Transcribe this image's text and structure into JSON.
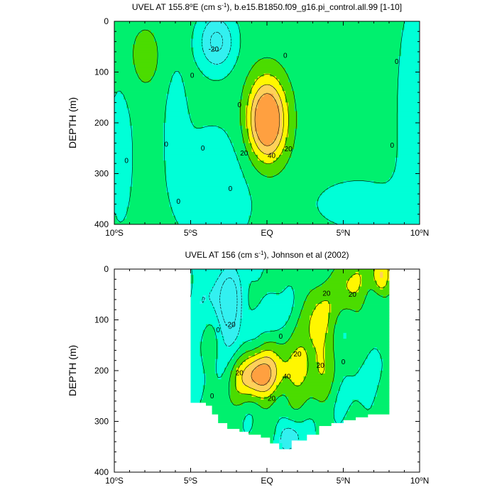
{
  "colors": {
    "band_neg30_neg10": "#33f0f0",
    "band_neg10_0": "#00ffd7",
    "band_0_10": "#00f06e",
    "band_10_20": "#4bdc00",
    "band_20_30": "#fff700",
    "band_30_40": "#ffd05a",
    "band_40_50": "#ffa040",
    "missing": "#ffffff",
    "axis": "#000000"
  },
  "chart_data": [
    {
      "type": "contour",
      "title_prefix": "UVEL AT 155.8",
      "title_deg": "o",
      "title_mid": "E (cm s",
      "title_exp": "-1",
      "title_suffix": "), b.e15.B1850.f09_g16.pi_control.all.99 [1-10]",
      "ylabel": "DEPTH (m)",
      "xlabel": "",
      "x_range": [
        -10,
        10
      ],
      "y_range": [
        0,
        400
      ],
      "y_reversed": true,
      "x_ticks": [
        {
          "value": -10,
          "num": "10",
          "deg": "o",
          "hemi": "S"
        },
        {
          "value": -5,
          "num": "5",
          "deg": "o",
          "hemi": "S"
        },
        {
          "value": 0,
          "num": "EQ",
          "deg": "",
          "hemi": ""
        },
        {
          "value": 5,
          "num": "5",
          "deg": "o",
          "hemi": "N"
        },
        {
          "value": 10,
          "num": "10",
          "deg": "o",
          "hemi": "N"
        }
      ],
      "y_ticks": [
        {
          "value": 0,
          "label": "0"
        },
        {
          "value": 100,
          "label": "100"
        },
        {
          "value": 200,
          "label": "200"
        },
        {
          "value": 300,
          "label": "300"
        },
        {
          "value": 400,
          "label": "400"
        }
      ],
      "contour_levels": [
        -20,
        -10,
        0,
        10,
        20,
        30,
        40
      ],
      "contour_labels": [
        {
          "lat": -3.5,
          "depth": 55,
          "text": "-20"
        },
        {
          "lat": 1.2,
          "depth": 68,
          "text": "0"
        },
        {
          "lat": -4.9,
          "depth": 107,
          "text": "0"
        },
        {
          "lat": -9.2,
          "depth": 275,
          "text": "0"
        },
        {
          "lat": -6.6,
          "depth": 243,
          "text": "0"
        },
        {
          "lat": -4.2,
          "depth": 250,
          "text": "0"
        },
        {
          "lat": -5.8,
          "depth": 355,
          "text": "0"
        },
        {
          "lat": -2.4,
          "depth": 330,
          "text": "0"
        },
        {
          "lat": -1.8,
          "depth": 165,
          "text": "0"
        },
        {
          "lat": 8.5,
          "depth": 80,
          "text": "0"
        },
        {
          "lat": 8.2,
          "depth": 245,
          "text": "0"
        },
        {
          "lat": -1.5,
          "depth": 260,
          "text": "20"
        },
        {
          "lat": 0.3,
          "depth": 265,
          "text": "40"
        },
        {
          "lat": 1.4,
          "depth": 252,
          "text": "20"
        }
      ]
    },
    {
      "type": "contour",
      "title_prefix": "UVEL AT 156 (cm s",
      "title_exp": "-1",
      "title_suffix": "), Johnson et al (2002)",
      "ylabel": "DEPTH (m)",
      "xlabel": "",
      "x_range": [
        -10,
        10
      ],
      "y_range": [
        0,
        400
      ],
      "y_reversed": true,
      "data_lat_range": [
        -5,
        8
      ],
      "x_ticks": [
        {
          "value": -10,
          "num": "10",
          "deg": "o",
          "hemi": "S"
        },
        {
          "value": -5,
          "num": "5",
          "deg": "o",
          "hemi": "S"
        },
        {
          "value": 0,
          "num": "EQ",
          "deg": "",
          "hemi": ""
        },
        {
          "value": 5,
          "num": "5",
          "deg": "o",
          "hemi": "N"
        },
        {
          "value": 10,
          "num": "10",
          "deg": "o",
          "hemi": "N"
        }
      ],
      "y_ticks": [
        {
          "value": 0,
          "label": "0"
        },
        {
          "value": 100,
          "label": "100"
        },
        {
          "value": 200,
          "label": "200"
        },
        {
          "value": 300,
          "label": "300"
        },
        {
          "value": 400,
          "label": "400"
        }
      ],
      "contour_levels": [
        -20,
        -10,
        0,
        10,
        20,
        30,
        40
      ],
      "contour_labels": [
        {
          "lat": -2.4,
          "depth": 110,
          "text": "-20"
        },
        {
          "lat": -3.2,
          "depth": 120,
          "text": "0"
        },
        {
          "lat": 0.9,
          "depth": 133,
          "text": "0"
        },
        {
          "lat": -3.6,
          "depth": 250,
          "text": "0"
        },
        {
          "lat": 3.9,
          "depth": 48,
          "text": "20"
        },
        {
          "lat": 5.6,
          "depth": 50,
          "text": "20"
        },
        {
          "lat": 2.0,
          "depth": 168,
          "text": "20"
        },
        {
          "lat": 3.5,
          "depth": 190,
          "text": "20"
        },
        {
          "lat": 5.0,
          "depth": 183,
          "text": "0"
        },
        {
          "lat": -1.8,
          "depth": 205,
          "text": "20"
        },
        {
          "lat": 1.3,
          "depth": 212,
          "text": "40"
        },
        {
          "lat": 0.3,
          "depth": 255,
          "text": "20"
        }
      ]
    }
  ]
}
